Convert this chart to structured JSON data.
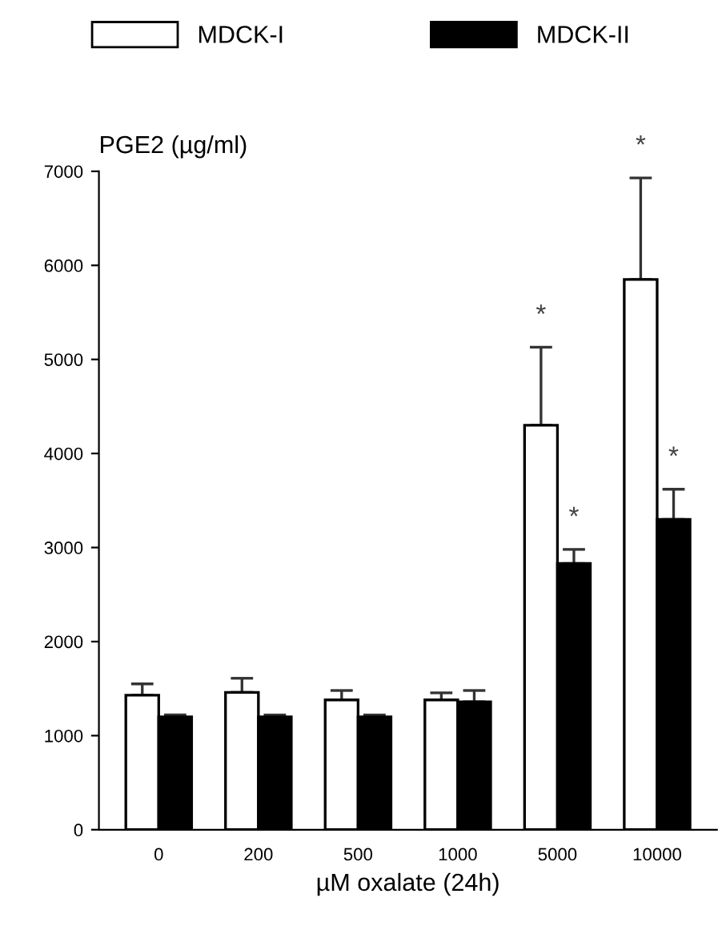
{
  "chart_data": {
    "type": "bar",
    "xlabel": "µM oxalate (24h)",
    "ylabel": "PGE2 (µg/ml)",
    "categories": [
      "0",
      "200",
      "500",
      "1000",
      "5000",
      "10000"
    ],
    "series": [
      {
        "name": "MDCK-I",
        "color": "#ffffff",
        "values": [
          1430,
          1460,
          1380,
          1380,
          4300,
          5850
        ],
        "errors": [
          120,
          150,
          100,
          75,
          830,
          1080
        ]
      },
      {
        "name": "MDCK-II",
        "color": "#000000",
        "values": [
          1200,
          1200,
          1200,
          1360,
          2830,
          3300
        ],
        "errors": [
          20,
          20,
          20,
          120,
          150,
          320
        ]
      }
    ],
    "ylim": [
      0,
      7000
    ],
    "yticks": [
      0,
      1000,
      2000,
      3000,
      4000,
      5000,
      6000,
      7000
    ],
    "grid": false,
    "legend": "top",
    "annotations": [
      {
        "text": "*",
        "x": "5000",
        "y": 5130
      },
      {
        "text": "*",
        "x": "5000",
        "y": 2980
      },
      {
        "text": "*",
        "x": "10000",
        "y": 6930
      },
      {
        "text": "*",
        "x": "10000",
        "y": 3620
      }
    ]
  }
}
